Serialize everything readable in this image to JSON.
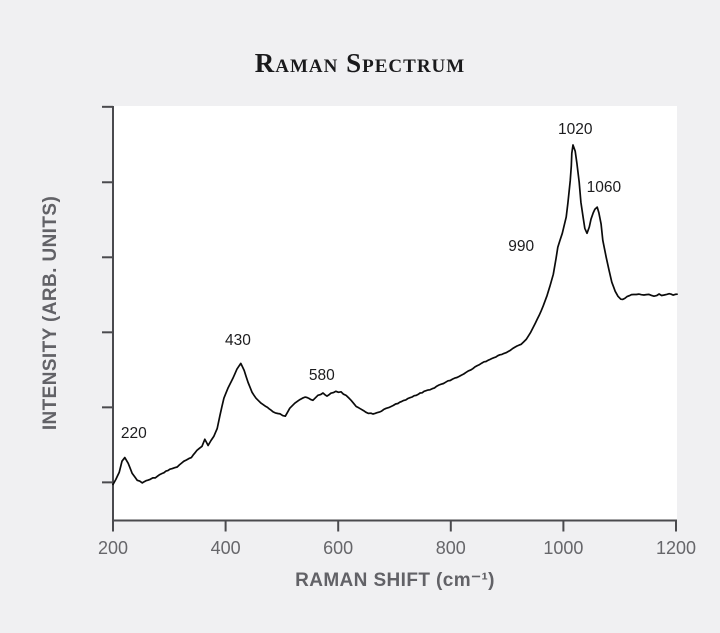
{
  "chart_data": {
    "type": "line",
    "title": "Raman Spectrum",
    "xlabel": "RAMAN SHIFT (cm⁻¹)",
    "ylabel": "INTENSITY (ARB. UNITS)",
    "x_ticks": [
      200,
      400,
      600,
      800,
      1000,
      1200
    ],
    "x_range": [
      200,
      1200
    ],
    "y_ticks_normalized": [
      0.092,
      0.273,
      0.454,
      0.635,
      0.816,
      0.998
    ],
    "y_axis_tick_labels": "none (arbitrary units)",
    "grid": false,
    "legend": false,
    "outer_bg": "#f0f0f2",
    "plot_bg": "#ffffff",
    "axis_color": "#4a4a4e",
    "line_color": "#0b0b0b",
    "peak_annotations": [
      {
        "label": "220",
        "x": 237,
        "y": 0.208
      },
      {
        "label": "430",
        "x": 422,
        "y": 0.432
      },
      {
        "label": "580",
        "x": 571,
        "y": 0.348
      },
      {
        "label": "990",
        "x": 925,
        "y": 0.659
      },
      {
        "label": "1020",
        "x": 1021,
        "y": 0.942
      },
      {
        "label": "1060",
        "x": 1072,
        "y": 0.802
      }
    ],
    "series": [
      {
        "name": "raman-spectrum",
        "points": [
          [
            200,
            0.087
          ],
          [
            205,
            0.099
          ],
          [
            211,
            0.116
          ],
          [
            216,
            0.143
          ],
          [
            221,
            0.152
          ],
          [
            227,
            0.138
          ],
          [
            234,
            0.114
          ],
          [
            243,
            0.097
          ],
          [
            252,
            0.092
          ],
          [
            262,
            0.097
          ],
          [
            275,
            0.104
          ],
          [
            287,
            0.114
          ],
          [
            301,
            0.123
          ],
          [
            314,
            0.13
          ],
          [
            326,
            0.143
          ],
          [
            339,
            0.152
          ],
          [
            349,
            0.169
          ],
          [
            358,
            0.179
          ],
          [
            363,
            0.196
          ],
          [
            369,
            0.181
          ],
          [
            374,
            0.193
          ],
          [
            379,
            0.203
          ],
          [
            385,
            0.222
          ],
          [
            390,
            0.254
          ],
          [
            397,
            0.295
          ],
          [
            404,
            0.319
          ],
          [
            413,
            0.343
          ],
          [
            420,
            0.365
          ],
          [
            427,
            0.379
          ],
          [
            433,
            0.362
          ],
          [
            440,
            0.333
          ],
          [
            447,
            0.309
          ],
          [
            454,
            0.295
          ],
          [
            463,
            0.283
          ],
          [
            474,
            0.273
          ],
          [
            484,
            0.263
          ],
          [
            497,
            0.256
          ],
          [
            506,
            0.251
          ],
          [
            514,
            0.271
          ],
          [
            523,
            0.283
          ],
          [
            532,
            0.292
          ],
          [
            541,
            0.297
          ],
          [
            548,
            0.295
          ],
          [
            555,
            0.29
          ],
          [
            564,
            0.302
          ],
          [
            573,
            0.307
          ],
          [
            580,
            0.3
          ],
          [
            587,
            0.307
          ],
          [
            596,
            0.312
          ],
          [
            605,
            0.309
          ],
          [
            614,
            0.302
          ],
          [
            623,
            0.29
          ],
          [
            632,
            0.275
          ],
          [
            641,
            0.268
          ],
          [
            649,
            0.261
          ],
          [
            658,
            0.258
          ],
          [
            669,
            0.258
          ],
          [
            681,
            0.268
          ],
          [
            694,
            0.275
          ],
          [
            706,
            0.283
          ],
          [
            720,
            0.292
          ],
          [
            735,
            0.3
          ],
          [
            749,
            0.309
          ],
          [
            763,
            0.316
          ],
          [
            779,
            0.326
          ],
          [
            795,
            0.336
          ],
          [
            811,
            0.345
          ],
          [
            827,
            0.357
          ],
          [
            843,
            0.37
          ],
          [
            859,
            0.382
          ],
          [
            873,
            0.391
          ],
          [
            887,
            0.399
          ],
          [
            902,
            0.408
          ],
          [
            914,
            0.418
          ],
          [
            925,
            0.425
          ],
          [
            934,
            0.437
          ],
          [
            942,
            0.454
          ],
          [
            950,
            0.476
          ],
          [
            957,
            0.495
          ],
          [
            964,
            0.517
          ],
          [
            971,
            0.543
          ],
          [
            976,
            0.565
          ],
          [
            982,
            0.594
          ],
          [
            987,
            0.633
          ],
          [
            990,
            0.659
          ],
          [
            994,
            0.676
          ],
          [
            998,
            0.693
          ],
          [
            1001,
            0.71
          ],
          [
            1005,
            0.732
          ],
          [
            1008,
            0.766
          ],
          [
            1012,
            0.819
          ],
          [
            1014,
            0.855
          ],
          [
            1015,
            0.886
          ],
          [
            1017,
            0.906
          ],
          [
            1021,
            0.891
          ],
          [
            1024,
            0.862
          ],
          [
            1028,
            0.816
          ],
          [
            1031,
            0.768
          ],
          [
            1035,
            0.732
          ],
          [
            1038,
            0.705
          ],
          [
            1042,
            0.693
          ],
          [
            1046,
            0.708
          ],
          [
            1049,
            0.727
          ],
          [
            1053,
            0.742
          ],
          [
            1056,
            0.751
          ],
          [
            1060,
            0.756
          ],
          [
            1063,
            0.742
          ],
          [
            1067,
            0.715
          ],
          [
            1070,
            0.676
          ],
          [
            1076,
            0.635
          ],
          [
            1081,
            0.604
          ],
          [
            1086,
            0.575
          ],
          [
            1092,
            0.553
          ],
          [
            1097,
            0.541
          ],
          [
            1102,
            0.534
          ],
          [
            1109,
            0.536
          ],
          [
            1117,
            0.543
          ],
          [
            1125,
            0.546
          ],
          [
            1134,
            0.548
          ],
          [
            1143,
            0.543
          ],
          [
            1152,
            0.546
          ],
          [
            1161,
            0.541
          ],
          [
            1170,
            0.546
          ],
          [
            1179,
            0.543
          ],
          [
            1188,
            0.548
          ],
          [
            1195,
            0.543
          ],
          [
            1202,
            0.546
          ]
        ]
      }
    ]
  }
}
